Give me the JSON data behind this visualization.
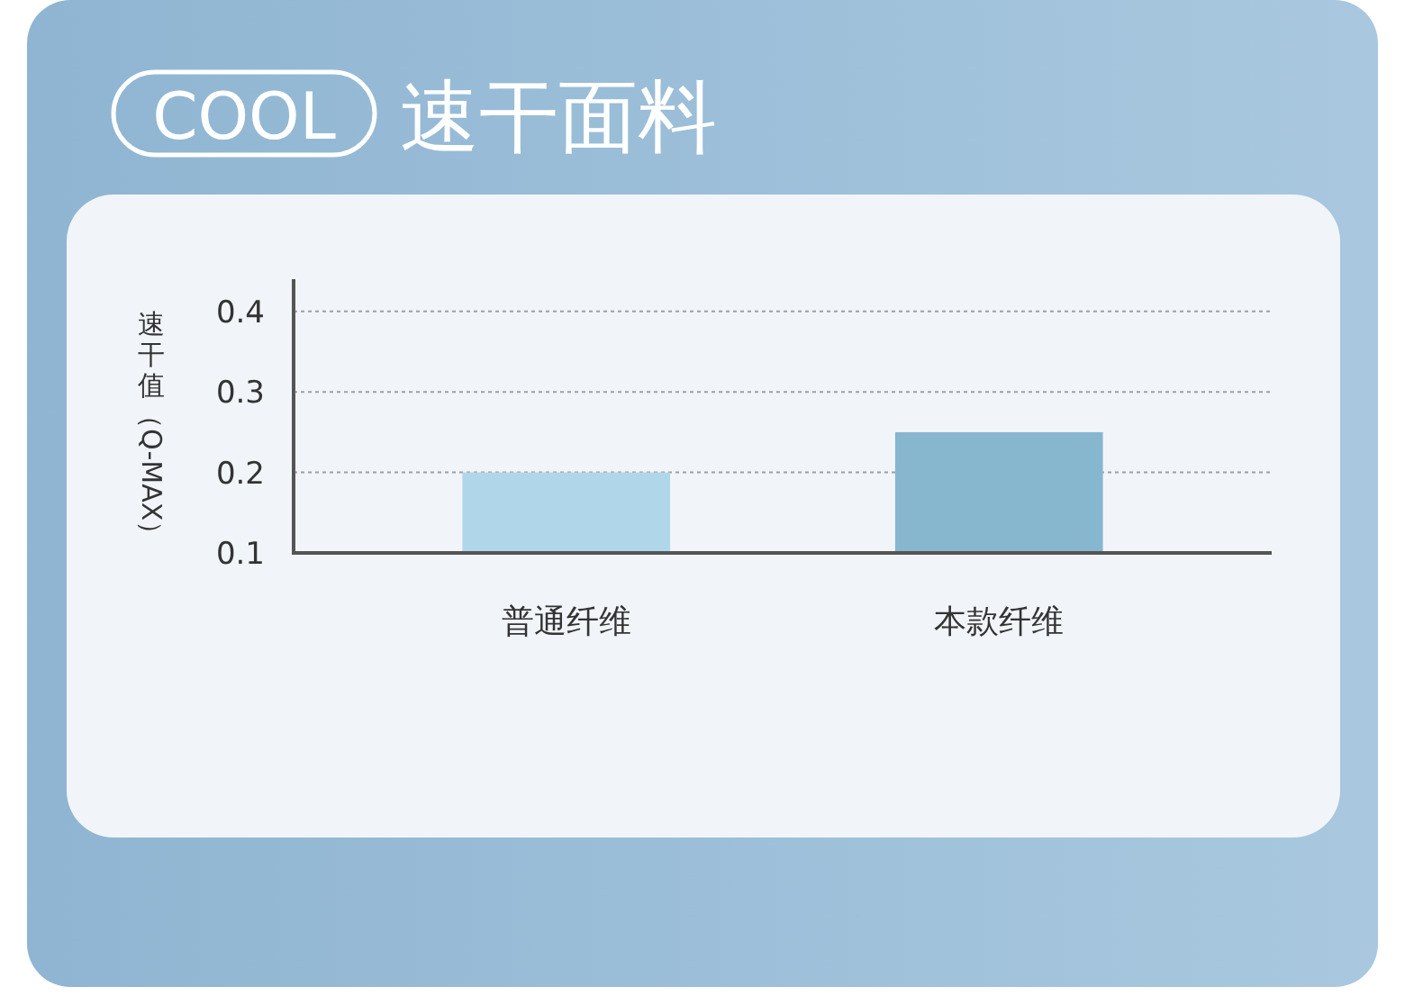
{
  "chart_data": {
    "type": "bar",
    "title": "速干面料",
    "annotations": [
      "COOL"
    ],
    "ylabel": "速干值（Q-MAX）",
    "categories": [
      "普通纤维",
      "本款纤维"
    ],
    "values": [
      0.2,
      0.25
    ],
    "colors": [
      "#b0d6e9",
      "#87b6cf"
    ],
    "ylim": [
      0.1,
      0.44
    ],
    "yticks": [
      0.1,
      0.2,
      0.3,
      0.4
    ],
    "grid": "y"
  }
}
